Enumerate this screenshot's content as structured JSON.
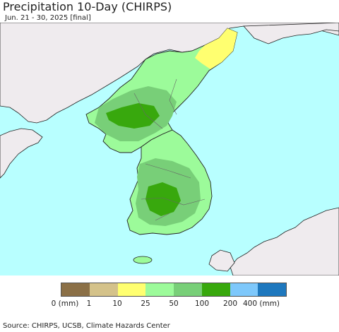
{
  "title": "Precipitation 10-Day (CHIRPS)",
  "subtitle": "Jun. 21 - 30, 2025 [final]",
  "colors": {
    "sea": "#b8ffff",
    "land_nodata": "#efebee",
    "border": "#666666",
    "coast": "#111111"
  },
  "legend": {
    "swatches": [
      {
        "color": "#8b7047"
      },
      {
        "color": "#d4c28a"
      },
      {
        "color": "#ffff70"
      },
      {
        "color": "#9cfb9a"
      },
      {
        "color": "#78cf78"
      },
      {
        "color": "#38a80d"
      },
      {
        "color": "#7ec8fb"
      },
      {
        "color": "#1e78be"
      }
    ],
    "ticks": [
      "0 (mm)",
      "1",
      "10",
      "25",
      "50",
      "100",
      "200",
      "400 (mm)"
    ]
  },
  "source": "Source: CHIRPS, UCSB, Climate Hazards Center"
}
